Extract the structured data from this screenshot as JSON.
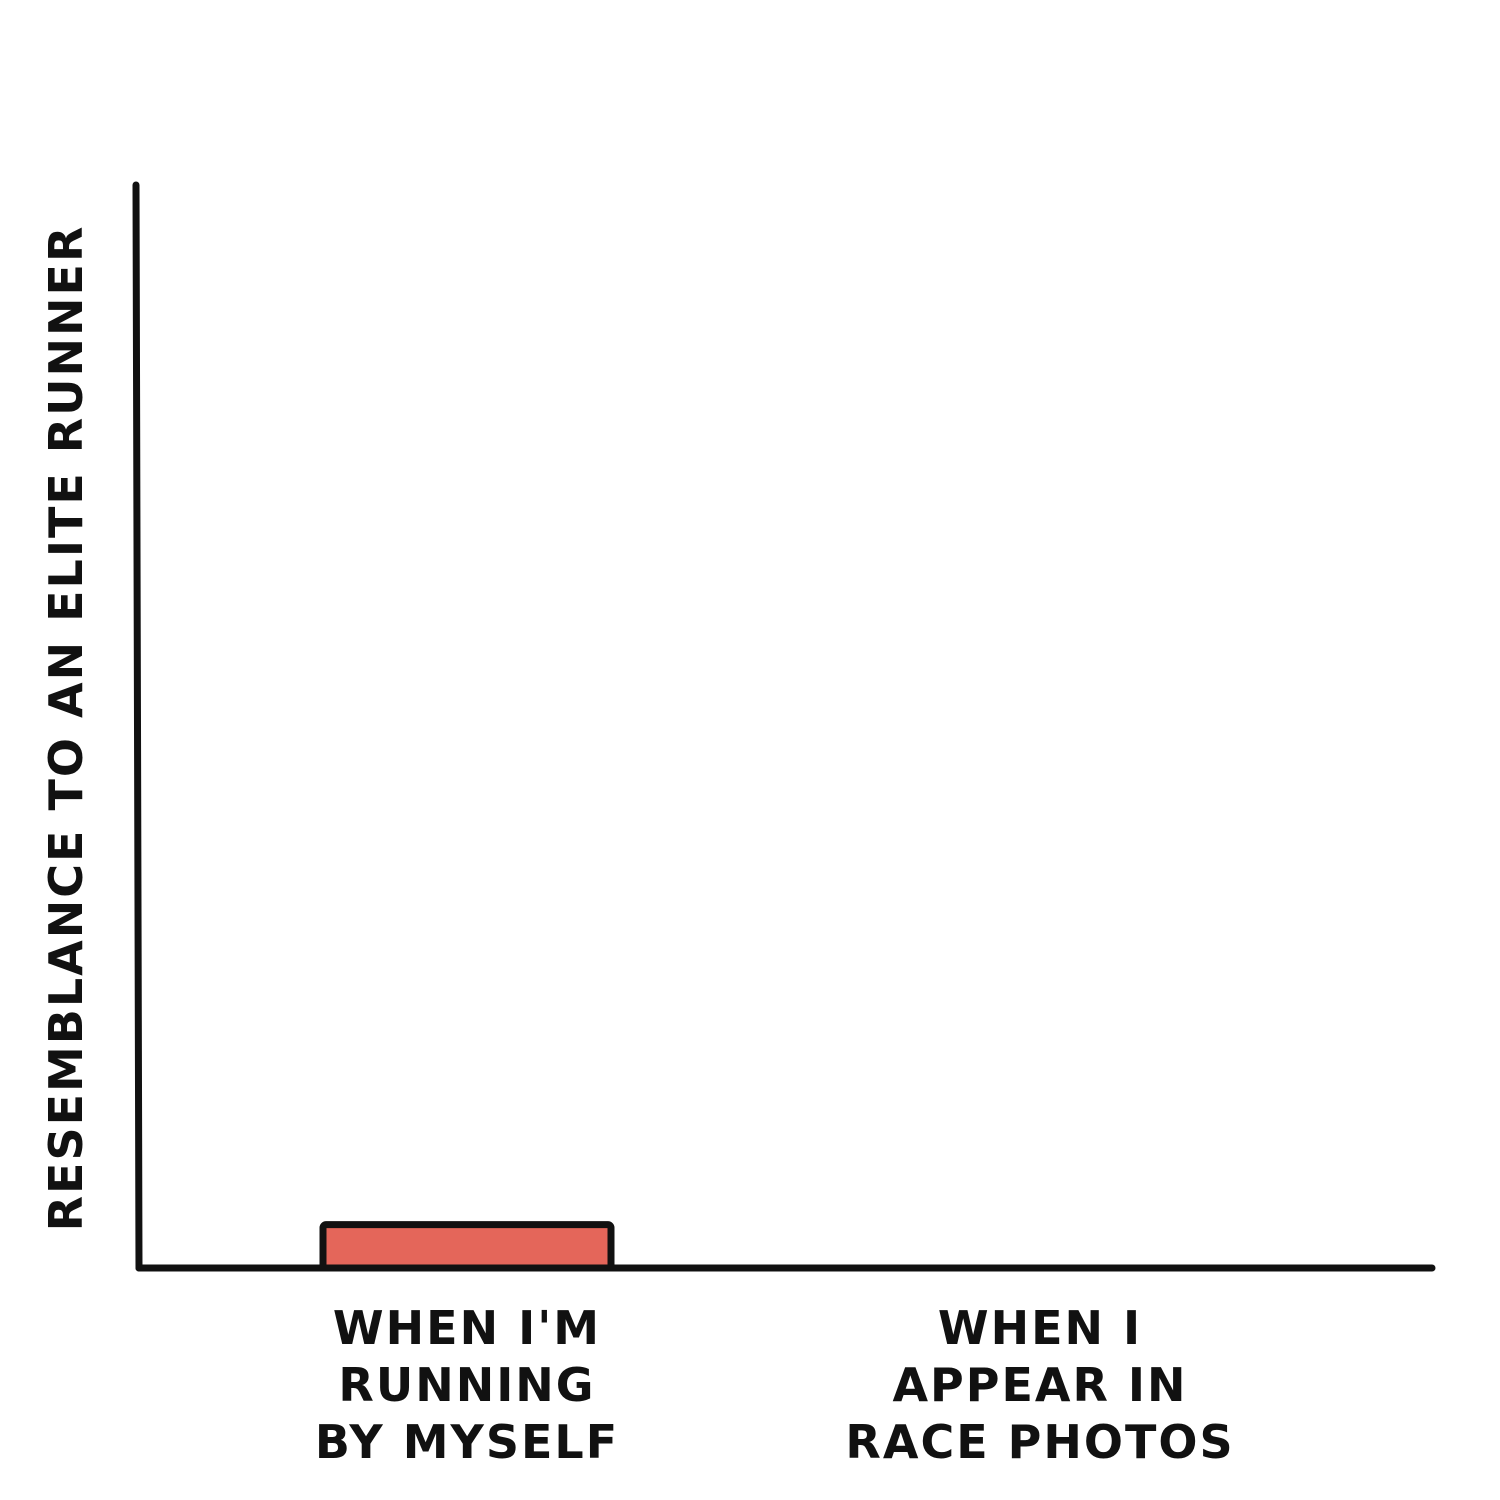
{
  "chart_data": {
    "type": "bar",
    "title": "",
    "ylabel": "RESEMBLANCE TO AN ELITE RUNNER",
    "xlabel": "",
    "categories": [
      [
        "WHEN I'M",
        "RUNNING",
        "BY MYSELF"
      ],
      [
        "WHEN I",
        "APPEAR IN",
        "RACE PHOTOS"
      ]
    ],
    "values": [
      4,
      0
    ],
    "ylim": [
      0,
      100
    ],
    "grid": false,
    "bar_color": "#E4665A"
  }
}
